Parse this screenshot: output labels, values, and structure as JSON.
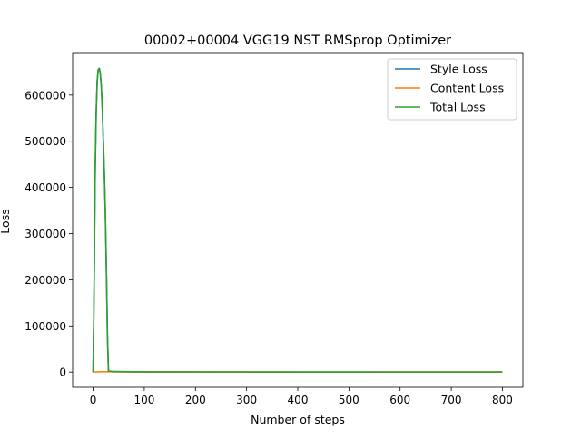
{
  "chart_data": {
    "type": "line",
    "title": "00002+00004 VGG19 NST RMSprop Optimizer",
    "xlabel": "Number of steps",
    "ylabel": "Loss",
    "xlim": [
      -40,
      840
    ],
    "ylim": [
      -33000,
      692000
    ],
    "xticks": [
      0,
      100,
      200,
      300,
      400,
      500,
      600,
      700,
      800
    ],
    "xtick_labels": [
      "0",
      "100",
      "200",
      "300",
      "400",
      "500",
      "600",
      "700",
      "800"
    ],
    "yticks": [
      0,
      100000,
      200000,
      300000,
      400000,
      500000,
      600000
    ],
    "ytick_labels": [
      "0",
      "100000",
      "200000",
      "300000",
      "400000",
      "500000",
      "600000"
    ],
    "grid": false,
    "legend_position": "upper right",
    "series": [
      {
        "name": "Style Loss",
        "color": "#1f77b4",
        "x": [
          0,
          2,
          4,
          6,
          8,
          10,
          12,
          14,
          16,
          18,
          20,
          22,
          24,
          26,
          28,
          30,
          32,
          40,
          100,
          200,
          400,
          600,
          800
        ],
        "y": [
          0,
          180000,
          430000,
          560000,
          630000,
          655000,
          658000,
          648000,
          620000,
          570000,
          500000,
          430000,
          340000,
          220000,
          80000,
          3000,
          1500,
          800,
          300,
          200,
          100,
          100,
          100
        ]
      },
      {
        "name": "Content Loss",
        "color": "#ff7f0e",
        "x": [
          0,
          10,
          20,
          30,
          32,
          40,
          100,
          200,
          400,
          600,
          800
        ],
        "y": [
          0,
          500,
          800,
          900,
          700,
          500,
          300,
          200,
          150,
          120,
          100
        ]
      },
      {
        "name": "Total Loss",
        "color": "#2ca02c",
        "x": [
          0,
          2,
          4,
          6,
          8,
          10,
          12,
          14,
          16,
          18,
          20,
          22,
          24,
          26,
          28,
          30,
          32,
          40,
          100,
          200,
          400,
          600,
          800
        ],
        "y": [
          0,
          180000,
          430000,
          560000,
          630000,
          655000,
          658000,
          648000,
          620000,
          570000,
          500000,
          430000,
          340000,
          220000,
          80000,
          3000,
          2000,
          1300,
          600,
          400,
          250,
          220,
          200
        ]
      }
    ]
  }
}
